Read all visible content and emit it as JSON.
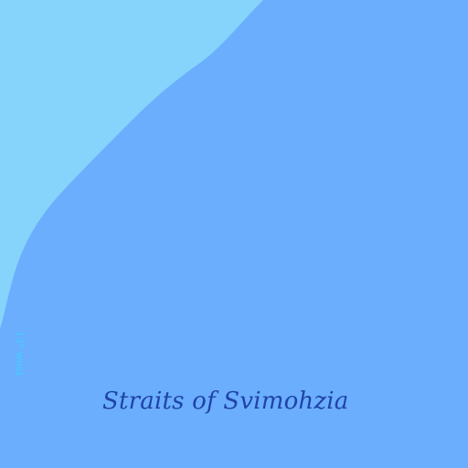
{
  "map": {
    "colors": {
      "shallow_water": "#86d3fb",
      "deep_water": "#6aaefd",
      "strait_label": "#1f43a8",
      "meridian_label": "#3fd2ff"
    },
    "labels": {
      "strait": "Straits of Svimohzia",
      "meridian": "13° west"
    }
  }
}
